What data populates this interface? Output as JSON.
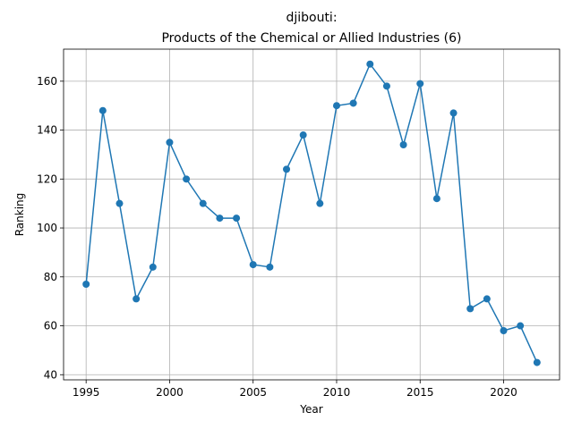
{
  "chart_data": {
    "type": "line",
    "title": "djibouti:",
    "subtitle": "Products of the Chemical or Allied Industries (6)",
    "x_label": "Year",
    "y_label": "Ranking",
    "x": [
      1995,
      1996,
      1997,
      1998,
      1999,
      2000,
      2001,
      2002,
      2003,
      2004,
      2005,
      2006,
      2007,
      2008,
      2009,
      2010,
      2011,
      2012,
      2013,
      2014,
      2015,
      2016,
      2017,
      2018,
      2019,
      2020,
      2021,
      2022
    ],
    "series": [
      {
        "name": "Ranking",
        "color": "#1f77b4",
        "values": [
          77,
          148,
          110,
          71,
          84,
          135,
          120,
          110,
          104,
          104,
          85,
          84,
          124,
          138,
          110,
          150,
          151,
          167,
          158,
          134,
          159,
          112,
          147,
          67,
          71,
          58,
          60,
          45
        ]
      }
    ],
    "xlim": [
      1993.65,
      2023.35
    ],
    "ylim": [
      37.9,
      173.1
    ],
    "xticks": [
      1995,
      2000,
      2005,
      2010,
      2015,
      2020
    ],
    "yticks": [
      40,
      60,
      80,
      100,
      120,
      140,
      160
    ],
    "grid": true
  }
}
